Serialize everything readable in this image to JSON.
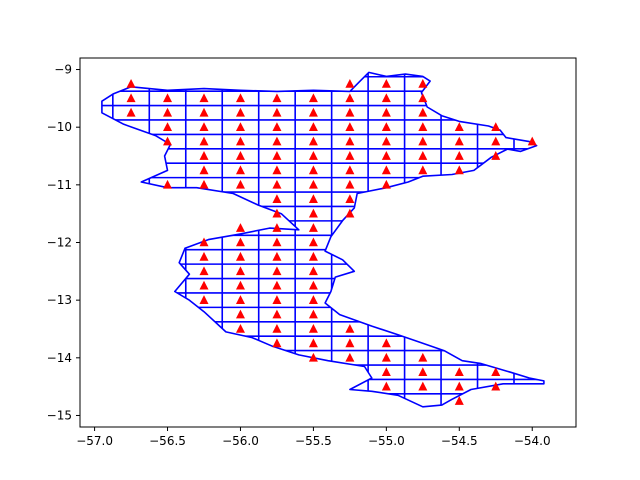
{
  "chart_data": {
    "type": "scatter",
    "title": "",
    "xlabel": "",
    "ylabel": "",
    "xlim": [
      -57.1,
      -53.7
    ],
    "ylim": [
      -15.2,
      -8.8
    ],
    "x_ticks": [
      -57.0,
      -56.5,
      -56.0,
      -55.5,
      -55.0,
      -54.5,
      -54.0
    ],
    "x_tick_labels": [
      "−57.0",
      "−56.5",
      "−56.0",
      "−55.5",
      "−55.0",
      "−54.5",
      "−54.0"
    ],
    "y_ticks": [
      -9,
      -10,
      -11,
      -12,
      -13,
      -14,
      -15
    ],
    "y_tick_labels": [
      "−9",
      "−10",
      "−11",
      "−12",
      "−13",
      "−14",
      "−15"
    ],
    "grid": false,
    "outline_color": "#0000ff",
    "marker_color": "#ff0000",
    "marker_shape": "triangle",
    "grid_cells": "0.25 x 0.25 degree cells clipped to outline",
    "outline": [
      [
        -56.87,
        -9.42
      ],
      [
        -56.75,
        -9.3
      ],
      [
        -56.5,
        -9.36
      ],
      [
        -56.25,
        -9.33
      ],
      [
        -56.0,
        -9.36
      ],
      [
        -55.75,
        -9.38
      ],
      [
        -55.5,
        -9.36
      ],
      [
        -55.25,
        -9.38
      ],
      [
        -55.18,
        -9.2
      ],
      [
        -55.12,
        -9.05
      ],
      [
        -55.0,
        -9.12
      ],
      [
        -54.87,
        -9.08
      ],
      [
        -54.75,
        -9.12
      ],
      [
        -54.7,
        -9.2
      ],
      [
        -54.76,
        -9.4
      ],
      [
        -54.72,
        -9.65
      ],
      [
        -54.62,
        -9.8
      ],
      [
        -54.5,
        -9.9
      ],
      [
        -54.3,
        -9.98
      ],
      [
        -54.22,
        -10.05
      ],
      [
        -54.18,
        -10.18
      ],
      [
        -54.02,
        -10.25
      ],
      [
        -53.97,
        -10.32
      ],
      [
        -54.08,
        -10.42
      ],
      [
        -54.17,
        -10.38
      ],
      [
        -54.28,
        -10.52
      ],
      [
        -54.4,
        -10.75
      ],
      [
        -54.55,
        -10.82
      ],
      [
        -54.75,
        -10.85
      ],
      [
        -54.85,
        -10.95
      ],
      [
        -55.0,
        -11.05
      ],
      [
        -55.2,
        -11.15
      ],
      [
        -55.22,
        -11.4
      ],
      [
        -55.3,
        -11.62
      ],
      [
        -55.38,
        -11.9
      ],
      [
        -55.42,
        -12.15
      ],
      [
        -55.3,
        -12.3
      ],
      [
        -55.22,
        -12.5
      ],
      [
        -55.35,
        -12.6
      ],
      [
        -55.38,
        -12.85
      ],
      [
        -55.42,
        -13.05
      ],
      [
        -55.32,
        -13.25
      ],
      [
        -55.1,
        -13.45
      ],
      [
        -54.92,
        -13.6
      ],
      [
        -54.78,
        -13.72
      ],
      [
        -54.6,
        -13.88
      ],
      [
        -54.48,
        -14.05
      ],
      [
        -54.35,
        -14.1
      ],
      [
        -54.15,
        -14.25
      ],
      [
        -54.02,
        -14.35
      ],
      [
        -53.92,
        -14.4
      ],
      [
        -53.92,
        -14.45
      ],
      [
        -54.2,
        -14.45
      ],
      [
        -54.42,
        -14.55
      ],
      [
        -54.55,
        -14.72
      ],
      [
        -54.62,
        -14.82
      ],
      [
        -54.75,
        -14.85
      ],
      [
        -54.92,
        -14.65
      ],
      [
        -55.1,
        -14.58
      ],
      [
        -55.25,
        -14.55
      ],
      [
        -55.1,
        -14.35
      ],
      [
        -55.15,
        -14.15
      ],
      [
        -55.4,
        -14.05
      ],
      [
        -55.6,
        -13.95
      ],
      [
        -55.78,
        -13.8
      ],
      [
        -55.92,
        -13.65
      ],
      [
        -56.1,
        -13.55
      ],
      [
        -56.25,
        -13.2
      ],
      [
        -56.35,
        -13.0
      ],
      [
        -56.45,
        -12.85
      ],
      [
        -56.35,
        -12.55
      ],
      [
        -56.42,
        -12.35
      ],
      [
        -56.38,
        -12.1
      ],
      [
        -56.22,
        -11.95
      ],
      [
        -56.0,
        -11.85
      ],
      [
        -55.8,
        -11.75
      ],
      [
        -55.6,
        -11.78
      ],
      [
        -55.72,
        -11.5
      ],
      [
        -55.88,
        -11.35
      ],
      [
        -56.05,
        -11.15
      ],
      [
        -56.3,
        -11.05
      ],
      [
        -56.5,
        -11.05
      ],
      [
        -56.68,
        -10.95
      ],
      [
        -56.5,
        -10.75
      ],
      [
        -56.52,
        -10.5
      ],
      [
        -56.48,
        -10.3
      ],
      [
        -56.58,
        -10.15
      ],
      [
        -56.8,
        -9.95
      ],
      [
        -56.95,
        -9.75
      ],
      [
        -56.95,
        -9.55
      ]
    ],
    "points": [
      [
        -56.75,
        -9.25
      ],
      [
        -55.25,
        -9.25
      ],
      [
        -55.0,
        -9.25
      ],
      [
        -54.75,
        -9.25
      ],
      [
        -56.75,
        -9.5
      ],
      [
        -56.5,
        -9.5
      ],
      [
        -56.25,
        -9.5
      ],
      [
        -56.0,
        -9.5
      ],
      [
        -55.75,
        -9.5
      ],
      [
        -55.5,
        -9.5
      ],
      [
        -55.25,
        -9.5
      ],
      [
        -55.0,
        -9.5
      ],
      [
        -54.75,
        -9.5
      ],
      [
        -56.75,
        -9.75
      ],
      [
        -56.5,
        -9.75
      ],
      [
        -56.25,
        -9.75
      ],
      [
        -56.0,
        -9.75
      ],
      [
        -55.75,
        -9.75
      ],
      [
        -55.5,
        -9.75
      ],
      [
        -55.25,
        -9.75
      ],
      [
        -55.0,
        -9.75
      ],
      [
        -54.75,
        -9.75
      ],
      [
        -56.5,
        -10.0
      ],
      [
        -56.25,
        -10.0
      ],
      [
        -56.0,
        -10.0
      ],
      [
        -55.75,
        -10.0
      ],
      [
        -55.5,
        -10.0
      ],
      [
        -55.25,
        -10.0
      ],
      [
        -55.0,
        -10.0
      ],
      [
        -54.75,
        -10.0
      ],
      [
        -54.5,
        -10.0
      ],
      [
        -54.25,
        -10.0
      ],
      [
        -56.5,
        -10.25
      ],
      [
        -56.25,
        -10.25
      ],
      [
        -56.0,
        -10.25
      ],
      [
        -55.75,
        -10.25
      ],
      [
        -55.5,
        -10.25
      ],
      [
        -55.25,
        -10.25
      ],
      [
        -55.0,
        -10.25
      ],
      [
        -54.75,
        -10.25
      ],
      [
        -54.5,
        -10.25
      ],
      [
        -54.25,
        -10.25
      ],
      [
        -54.0,
        -10.25
      ],
      [
        -56.25,
        -10.5
      ],
      [
        -56.0,
        -10.5
      ],
      [
        -55.75,
        -10.5
      ],
      [
        -55.5,
        -10.5
      ],
      [
        -55.25,
        -10.5
      ],
      [
        -55.0,
        -10.5
      ],
      [
        -54.75,
        -10.5
      ],
      [
        -54.5,
        -10.5
      ],
      [
        -54.25,
        -10.5
      ],
      [
        -56.25,
        -10.75
      ],
      [
        -56.0,
        -10.75
      ],
      [
        -55.75,
        -10.75
      ],
      [
        -55.5,
        -10.75
      ],
      [
        -55.25,
        -10.75
      ],
      [
        -55.0,
        -10.75
      ],
      [
        -54.75,
        -10.75
      ],
      [
        -54.5,
        -10.75
      ],
      [
        -56.5,
        -11.0
      ],
      [
        -56.25,
        -11.0
      ],
      [
        -56.0,
        -11.0
      ],
      [
        -55.75,
        -11.0
      ],
      [
        -55.5,
        -11.0
      ],
      [
        -55.25,
        -11.0
      ],
      [
        -55.0,
        -11.0
      ],
      [
        -55.75,
        -11.25
      ],
      [
        -55.5,
        -11.25
      ],
      [
        -55.25,
        -11.25
      ],
      [
        -55.75,
        -11.5
      ],
      [
        -55.5,
        -11.5
      ],
      [
        -55.25,
        -11.5
      ],
      [
        -56.0,
        -11.75
      ],
      [
        -55.75,
        -11.75
      ],
      [
        -55.5,
        -11.75
      ],
      [
        -56.25,
        -12.0
      ],
      [
        -56.0,
        -12.0
      ],
      [
        -55.75,
        -12.0
      ],
      [
        -55.5,
        -12.0
      ],
      [
        -56.25,
        -12.25
      ],
      [
        -56.0,
        -12.25
      ],
      [
        -55.75,
        -12.25
      ],
      [
        -55.5,
        -12.25
      ],
      [
        -56.25,
        -12.5
      ],
      [
        -56.0,
        -12.5
      ],
      [
        -55.75,
        -12.5
      ],
      [
        -55.5,
        -12.5
      ],
      [
        -56.25,
        -12.75
      ],
      [
        -56.0,
        -12.75
      ],
      [
        -55.75,
        -12.75
      ],
      [
        -55.5,
        -12.75
      ],
      [
        -56.25,
        -13.0
      ],
      [
        -56.0,
        -13.0
      ],
      [
        -55.75,
        -13.0
      ],
      [
        -55.5,
        -13.0
      ],
      [
        -56.0,
        -13.25
      ],
      [
        -55.75,
        -13.25
      ],
      [
        -55.5,
        -13.25
      ],
      [
        -56.0,
        -13.5
      ],
      [
        -55.75,
        -13.5
      ],
      [
        -55.5,
        -13.5
      ],
      [
        -55.25,
        -13.5
      ],
      [
        -55.75,
        -13.75
      ],
      [
        -55.5,
        -13.75
      ],
      [
        -55.25,
        -13.75
      ],
      [
        -55.0,
        -13.75
      ],
      [
        -55.5,
        -14.0
      ],
      [
        -55.25,
        -14.0
      ],
      [
        -55.0,
        -14.0
      ],
      [
        -54.75,
        -14.0
      ],
      [
        -55.0,
        -14.25
      ],
      [
        -54.75,
        -14.25
      ],
      [
        -54.5,
        -14.25
      ],
      [
        -54.25,
        -14.25
      ],
      [
        -55.0,
        -14.5
      ],
      [
        -54.75,
        -14.5
      ],
      [
        -54.5,
        -14.5
      ],
      [
        -54.25,
        -14.5
      ],
      [
        -54.5,
        -14.75
      ]
    ]
  }
}
